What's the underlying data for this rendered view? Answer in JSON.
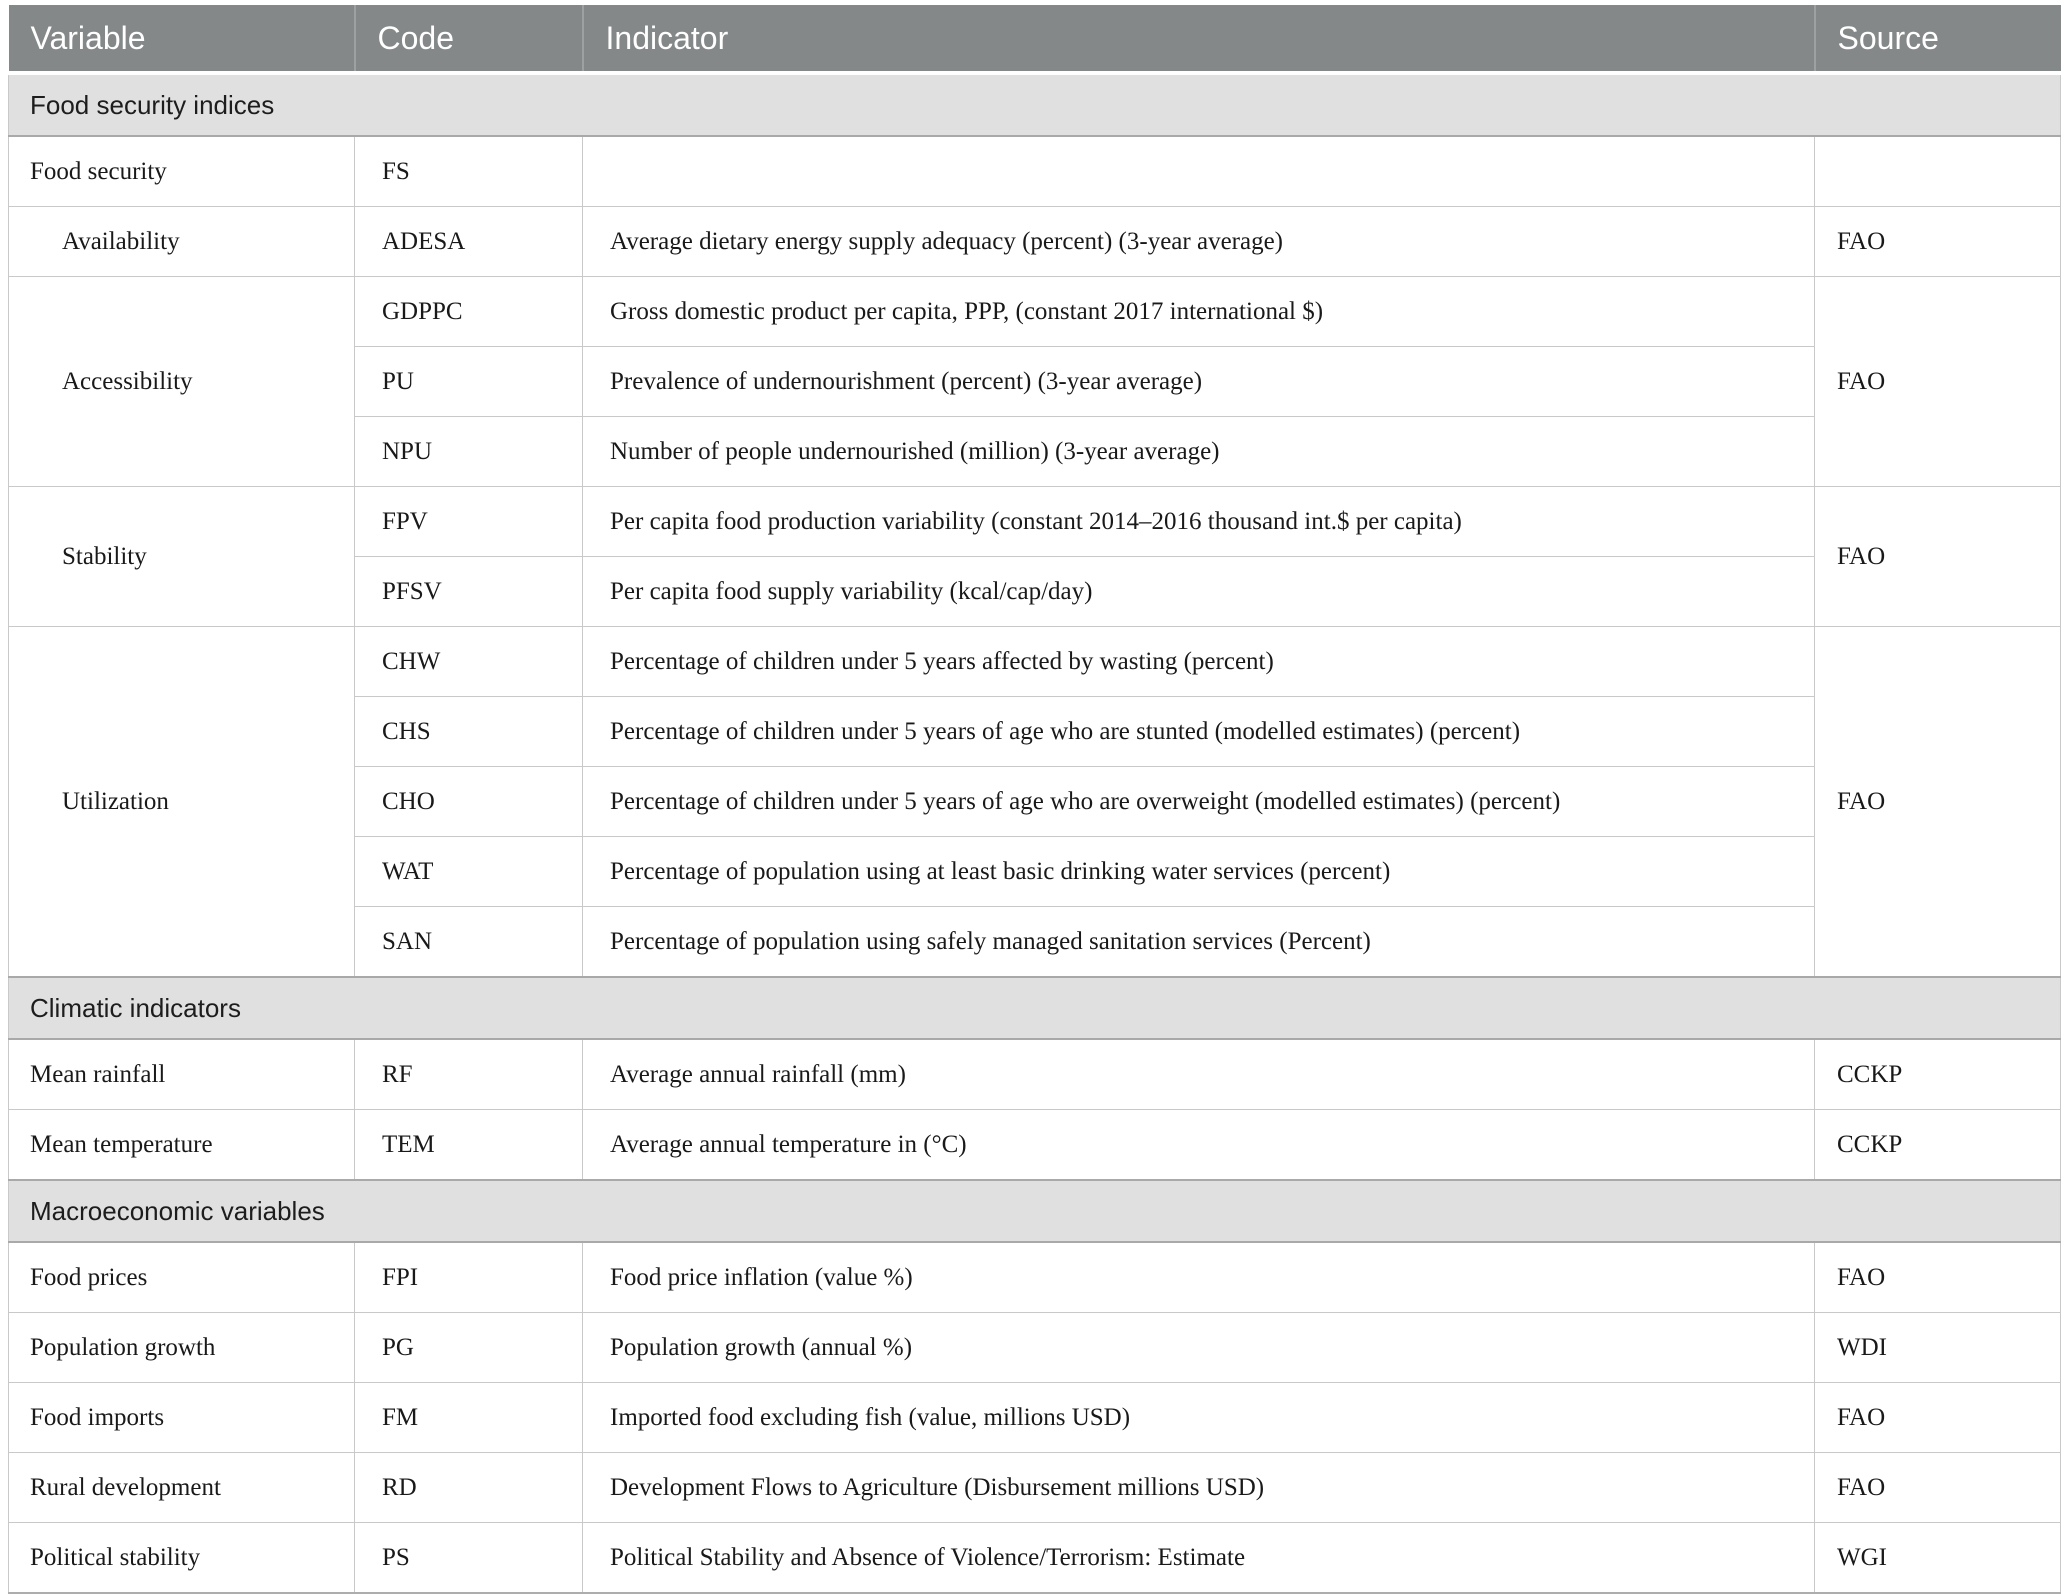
{
  "colors": {
    "header_bg": "#848888",
    "header_text": "#ffffff",
    "section_bg": "#e0e0e0",
    "border_light": "#c9c9c9",
    "border_dark": "#a9a9a9"
  },
  "table": {
    "columns": [
      "Variable",
      "Code",
      "Indicator",
      "Source"
    ],
    "sections": [
      {
        "title": "Food security indices",
        "groups": [
          {
            "variable": "Food security",
            "indented": false,
            "source": "",
            "rows": [
              {
                "code": "FS",
                "indicator": ""
              }
            ]
          },
          {
            "variable": "Availability",
            "indented": true,
            "source": "FAO",
            "rows": [
              {
                "code": "ADESA",
                "indicator": "Average dietary energy supply adequacy (percent) (3-year average)"
              }
            ]
          },
          {
            "variable": "Accessibility",
            "indented": true,
            "source": "FAO",
            "rows": [
              {
                "code": "GDPPC",
                "indicator": "Gross domestic product per capita, PPP, (constant 2017 international $)"
              },
              {
                "code": "PU",
                "indicator": "Prevalence of undernourishment (percent) (3-year average)"
              },
              {
                "code": "NPU",
                "indicator": "Number of people undernourished (million) (3-year average)"
              }
            ]
          },
          {
            "variable": "Stability",
            "indented": true,
            "source": "FAO",
            "rows": [
              {
                "code": "FPV",
                "indicator": "Per capita food production variability (constant 2014–2016 thousand int.$ per capita)"
              },
              {
                "code": "PFSV",
                "indicator": "Per capita food supply variability (kcal/cap/day)"
              }
            ]
          },
          {
            "variable": "Utilization",
            "indented": true,
            "source": "FAO",
            "rows": [
              {
                "code": "CHW",
                "indicator": "Percentage of children under 5 years affected by wasting (percent)"
              },
              {
                "code": "CHS",
                "indicator": "Percentage of children under 5 years of age who are stunted (modelled estimates) (percent)"
              },
              {
                "code": "CHO",
                "indicator": "Percentage of children under 5 years of age who are overweight (modelled estimates) (percent)"
              },
              {
                "code": "WAT",
                "indicator": "Percentage of population using at least basic drinking water services (percent)"
              },
              {
                "code": "SAN",
                "indicator": "Percentage of population using safely managed sanitation services (Percent)"
              }
            ]
          }
        ]
      },
      {
        "title": "Climatic indicators",
        "groups": [
          {
            "variable": "Mean rainfall",
            "indented": false,
            "source": "CCKP",
            "rows": [
              {
                "code": "RF",
                "indicator": "Average annual rainfall (mm)"
              }
            ]
          },
          {
            "variable": "Mean temperature",
            "indented": false,
            "source": "CCKP",
            "rows": [
              {
                "code": "TEM",
                "indicator": "Average annual temperature in (°C)"
              }
            ]
          }
        ]
      },
      {
        "title": "Macroeconomic variables",
        "groups": [
          {
            "variable": "Food prices",
            "indented": false,
            "source": "FAO",
            "rows": [
              {
                "code": "FPI",
                "indicator": "Food price inflation (value %)"
              }
            ]
          },
          {
            "variable": "Population growth",
            "indented": false,
            "source": "WDI",
            "rows": [
              {
                "code": "PG",
                "indicator": "Population growth (annual %)"
              }
            ]
          },
          {
            "variable": "Food imports",
            "indented": false,
            "source": "FAO",
            "rows": [
              {
                "code": "FM",
                "indicator": "Imported food excluding fish (value, millions USD)"
              }
            ]
          },
          {
            "variable": "Rural development",
            "indented": false,
            "source": "FAO",
            "rows": [
              {
                "code": "RD",
                "indicator": "Development Flows to Agriculture (Disbursement millions USD)"
              }
            ]
          },
          {
            "variable": "Political stability",
            "indented": false,
            "source": "WGI",
            "rows": [
              {
                "code": "PS",
                "indicator": "Political Stability and Absence of Violence/Terrorism: Estimate"
              }
            ]
          }
        ]
      }
    ]
  }
}
